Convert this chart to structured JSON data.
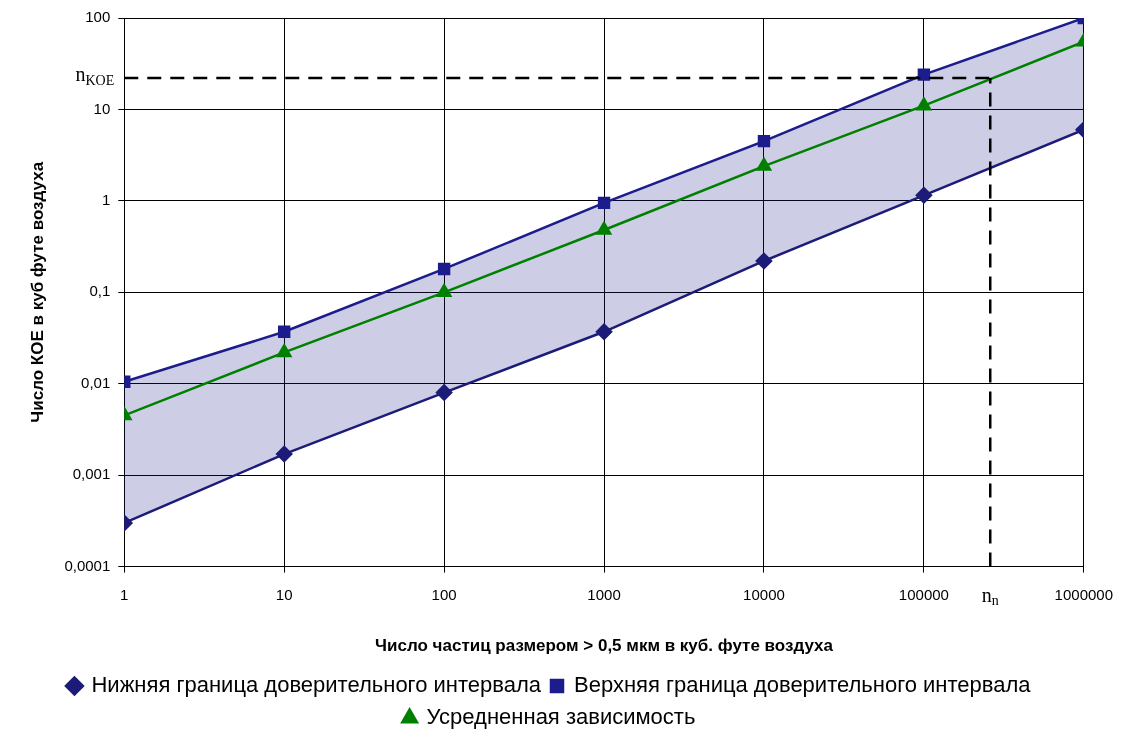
{
  "chart_data": {
    "type": "line",
    "xlabel": "Число частиц размером > 0,5 мкм в куб. футе воздуха",
    "ylabel": "Число КОЕ в куб футе воздуха",
    "x": [
      1,
      10,
      100,
      1000,
      10000,
      100000,
      1000000
    ],
    "log": "xy",
    "xlim": [
      1,
      1000000
    ],
    "xticks": [
      1,
      10,
      100,
      1000,
      10000,
      100000,
      1000000
    ],
    "ylim": [
      0.0001,
      100
    ],
    "yticks": [
      {
        "value": 0.0001,
        "label": "0,0001"
      },
      {
        "value": 0.001,
        "label": "0,001"
      },
      {
        "value": 0.01,
        "label": "0,01"
      },
      {
        "value": 0.1,
        "label": "0,1"
      },
      1,
      10,
      100
    ],
    "grid": true,
    "legend": "bottom",
    "series": [
      {
        "name": "Нижняя граница доверительного интервала",
        "color": "#1c1c78",
        "marker": "diamond",
        "values": [
          0.0003,
          0.0017,
          0.008,
          0.037,
          0.22,
          1.15,
          6
        ]
      },
      {
        "name": "Верхняя граница доверительного интервала",
        "color": "#1c1c8c",
        "marker": "square",
        "values": [
          0.0105,
          0.037,
          0.18,
          0.95,
          4.5,
          24,
          100
        ]
      },
      {
        "name": "Усредненная зависимость",
        "color": "#008000",
        "marker": "triangle",
        "values": [
          0.0045,
          0.022,
          0.1,
          0.48,
          2.4,
          11,
          55
        ],
        "lower": [
          0.0003,
          0.0017,
          0.008,
          0.037,
          0.22,
          1.15,
          6
        ],
        "upper": [
          0.0105,
          0.037,
          0.18,
          0.95,
          4.5,
          24,
          100
        ]
      }
    ],
    "ref_lines": [
      {
        "axis": "y",
        "value": 22,
        "label": "n$_{KOE}$",
        "color": "#000000",
        "line_style": "dashed"
      },
      {
        "axis": "x",
        "value": 260000,
        "label": "n$_{n}$",
        "color": "#000000",
        "line_style": "dashed"
      }
    ]
  }
}
